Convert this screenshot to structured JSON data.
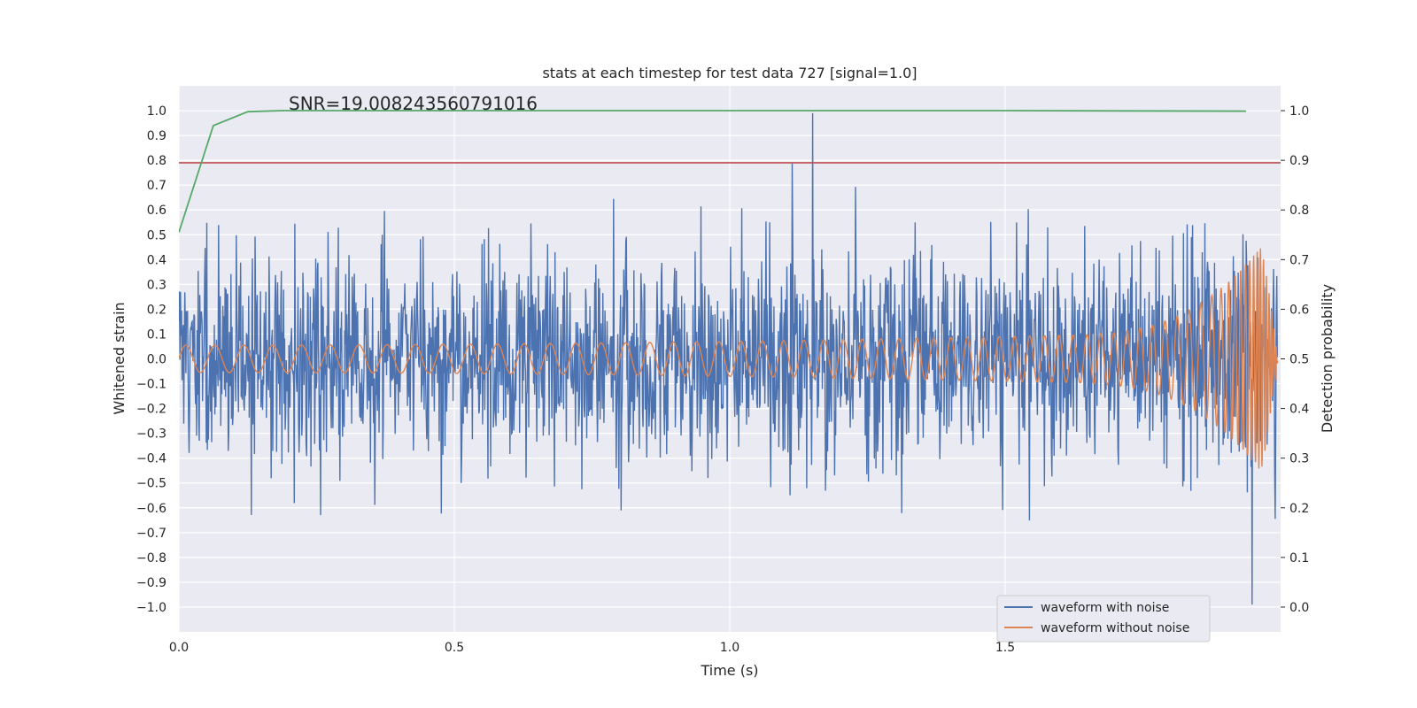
{
  "chart_data": {
    "type": "line",
    "title": "stats at each timestep for test data 727 [signal=1.0]",
    "xlabel": "Time (s)",
    "ylabel_left": "Whitened strain",
    "ylabel_right": "Detection probability",
    "xlim": [
      0.0,
      2.0
    ],
    "ylim_left": [
      -1.1,
      1.1
    ],
    "ylim_right": [
      -0.05,
      1.05
    ],
    "xticks": [
      "0.0",
      "0.5",
      "1.0",
      "1.5"
    ],
    "yticks_left": [
      "−1.0",
      "−0.9",
      "−0.8",
      "−0.7",
      "−0.6",
      "−0.5",
      "−0.4",
      "−0.3",
      "−0.2",
      "−0.1",
      "0.0",
      "0.1",
      "0.2",
      "0.3",
      "0.4",
      "0.5",
      "0.6",
      "0.7",
      "0.8",
      "0.9",
      "1.0"
    ],
    "yticks_right": [
      "0.0",
      "0.1",
      "0.2",
      "0.3",
      "0.4",
      "0.5",
      "0.6",
      "0.7",
      "0.8",
      "0.9",
      "1.0"
    ],
    "grid": true,
    "legend_position": "lower-right",
    "annotation": "SNR=19.008243560791016",
    "threshold_line": {
      "axis": "left",
      "value": 0.79,
      "color": "#c44e52"
    },
    "series": [
      {
        "name": "waveform with noise",
        "axis": "left",
        "color": "#4c72b0",
        "kind": "noisy"
      },
      {
        "name": "waveform without noise",
        "axis": "left",
        "color": "#dd8452",
        "kind": "chirp"
      },
      {
        "axis": "right",
        "color": "#55a868",
        "x": [
          0.0,
          0.0625,
          0.125,
          0.1875,
          0.25,
          0.5,
          1.0,
          1.5,
          1.9375
        ],
        "values": [
          0.755,
          0.97,
          0.998,
          1.0,
          1.0,
          1.0,
          1.0,
          1.0,
          0.999
        ]
      }
    ]
  }
}
